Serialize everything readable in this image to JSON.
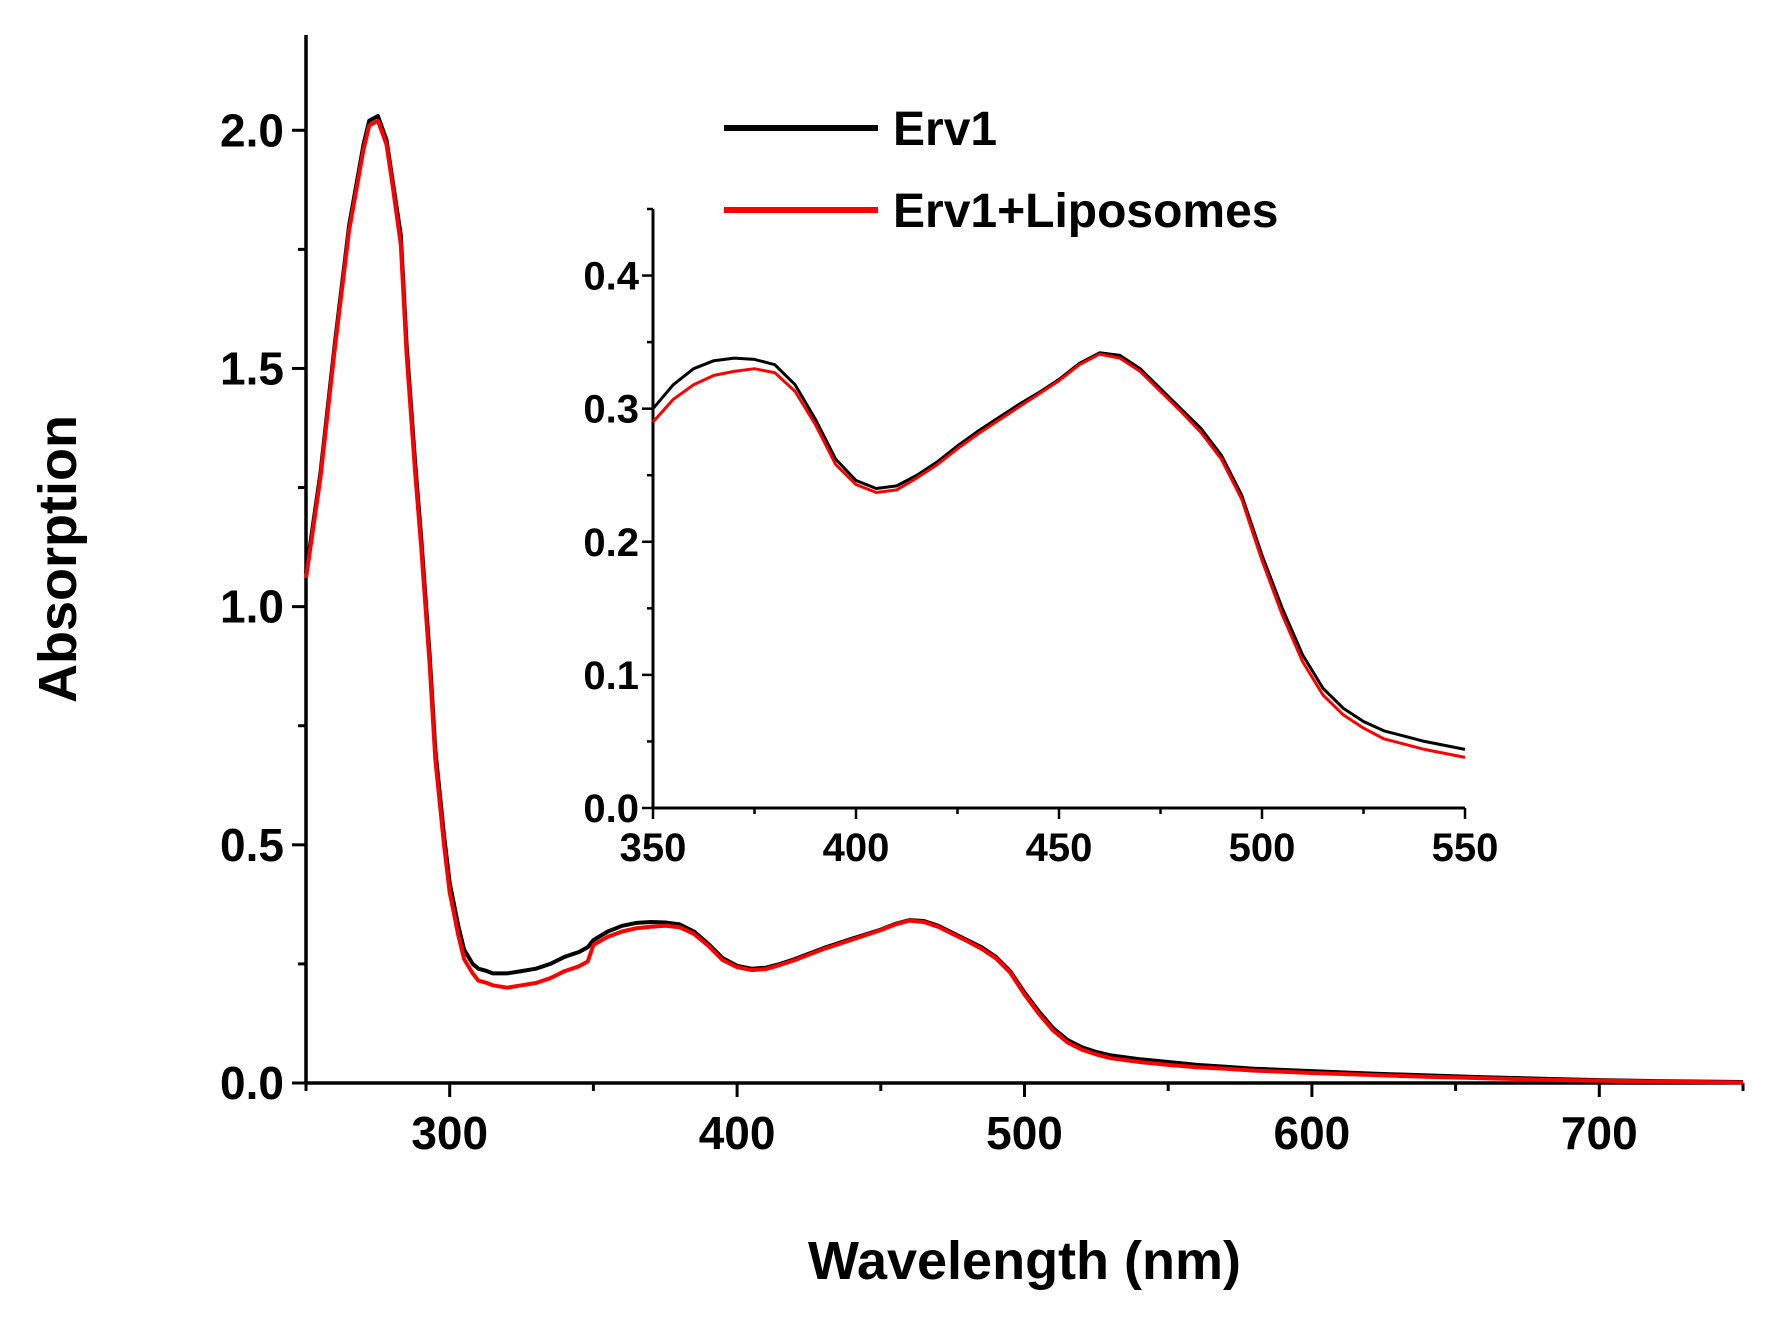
{
  "chart_data": [
    {
      "id": "main",
      "type": "line",
      "xlabel": "Wavelength (nm)",
      "ylabel": "Absorption",
      "xlim": [
        250,
        750
      ],
      "ylim": [
        0,
        2.2
      ],
      "xticks": [
        300,
        400,
        500,
        600,
        700
      ],
      "xtick_labels": [
        "300",
        "400",
        "500",
        "600",
        "700"
      ],
      "yticks": [
        0,
        0.5,
        1.0,
        1.5,
        2.0
      ],
      "ytick_labels": [
        "0.0",
        "0.5",
        "1.0",
        "1.5",
        "2.0"
      ],
      "grid": false,
      "legend": {
        "position": "top-center",
        "entries": [
          "Erv1",
          "Erv1+Liposomes"
        ]
      },
      "series": [
        {
          "name": "Erv1",
          "color": "#000000",
          "x": [
            250,
            255,
            260,
            265,
            270,
            272,
            275,
            278,
            280,
            283,
            285,
            288,
            290,
            293,
            295,
            298,
            300,
            303,
            305,
            308,
            310,
            313,
            315,
            320,
            325,
            330,
            335,
            340,
            345,
            348,
            350,
            355,
            360,
            365,
            370,
            375,
            380,
            385,
            390,
            395,
            400,
            405,
            410,
            415,
            420,
            430,
            440,
            450,
            455,
            460,
            465,
            470,
            475,
            480,
            485,
            490,
            495,
            500,
            505,
            510,
            515,
            520,
            525,
            530,
            540,
            550,
            560,
            570,
            580,
            600,
            620,
            640,
            660,
            680,
            700,
            720,
            750
          ],
          "y": [
            1.07,
            1.28,
            1.55,
            1.8,
            1.97,
            2.02,
            2.03,
            1.98,
            1.9,
            1.78,
            1.55,
            1.3,
            1.15,
            0.9,
            0.7,
            0.52,
            0.42,
            0.33,
            0.28,
            0.25,
            0.24,
            0.235,
            0.23,
            0.23,
            0.235,
            0.24,
            0.25,
            0.265,
            0.275,
            0.285,
            0.3,
            0.318,
            0.33,
            0.336,
            0.338,
            0.337,
            0.333,
            0.318,
            0.292,
            0.262,
            0.246,
            0.24,
            0.242,
            0.25,
            0.26,
            0.283,
            0.303,
            0.322,
            0.334,
            0.342,
            0.34,
            0.33,
            0.315,
            0.3,
            0.285,
            0.265,
            0.235,
            0.19,
            0.15,
            0.115,
            0.09,
            0.075,
            0.065,
            0.058,
            0.05,
            0.044,
            0.038,
            0.034,
            0.03,
            0.025,
            0.02,
            0.016,
            0.012,
            0.009,
            0.006,
            0.004,
            0.002
          ]
        },
        {
          "name": "Erv1+Liposomes",
          "color": "#ff0000",
          "x": [
            250,
            255,
            260,
            265,
            270,
            272,
            275,
            278,
            280,
            283,
            285,
            288,
            290,
            293,
            295,
            298,
            300,
            303,
            305,
            308,
            310,
            313,
            315,
            320,
            325,
            330,
            335,
            340,
            345,
            348,
            350,
            355,
            360,
            365,
            370,
            375,
            380,
            385,
            390,
            395,
            400,
            405,
            410,
            415,
            420,
            430,
            440,
            450,
            455,
            460,
            465,
            470,
            475,
            480,
            485,
            490,
            495,
            500,
            505,
            510,
            515,
            520,
            525,
            530,
            540,
            550,
            560,
            570,
            580,
            600,
            620,
            640,
            660,
            680,
            700,
            720,
            750
          ],
          "y": [
            1.06,
            1.27,
            1.54,
            1.79,
            1.96,
            2.01,
            2.02,
            1.97,
            1.89,
            1.76,
            1.53,
            1.28,
            1.13,
            0.88,
            0.68,
            0.5,
            0.4,
            0.31,
            0.26,
            0.23,
            0.215,
            0.21,
            0.205,
            0.2,
            0.205,
            0.21,
            0.22,
            0.235,
            0.245,
            0.255,
            0.29,
            0.307,
            0.318,
            0.325,
            0.328,
            0.33,
            0.327,
            0.313,
            0.288,
            0.258,
            0.243,
            0.237,
            0.239,
            0.248,
            0.258,
            0.281,
            0.301,
            0.321,
            0.333,
            0.341,
            0.338,
            0.328,
            0.313,
            0.298,
            0.282,
            0.262,
            0.232,
            0.186,
            0.145,
            0.11,
            0.085,
            0.07,
            0.06,
            0.052,
            0.044,
            0.038,
            0.033,
            0.03,
            0.026,
            0.021,
            0.017,
            0.013,
            0.01,
            0.007,
            0.005,
            0.003,
            0.001
          ]
        }
      ]
    },
    {
      "id": "inset",
      "type": "line",
      "xlabel": "",
      "ylabel": "",
      "xlim": [
        350,
        550
      ],
      "ylim": [
        0,
        0.45
      ],
      "xticks": [
        350,
        400,
        450,
        500,
        550
      ],
      "xtick_labels": [
        "350",
        "400",
        "450",
        "500",
        "550"
      ],
      "yticks": [
        0,
        0.1,
        0.2,
        0.3,
        0.4
      ],
      "ytick_labels": [
        "0.0",
        "0.1",
        "0.2",
        "0.3",
        "0.4"
      ],
      "grid": false,
      "series": [
        {
          "name": "Erv1",
          "color": "#000000",
          "x": [
            350,
            355,
            360,
            365,
            370,
            375,
            380,
            385,
            390,
            395,
            400,
            405,
            410,
            415,
            420,
            425,
            430,
            435,
            440,
            445,
            450,
            455,
            460,
            465,
            470,
            475,
            480,
            485,
            490,
            495,
            500,
            505,
            510,
            515,
            520,
            525,
            530,
            535,
            540,
            545,
            550
          ],
          "y": [
            0.3,
            0.318,
            0.33,
            0.336,
            0.338,
            0.337,
            0.333,
            0.318,
            0.292,
            0.262,
            0.246,
            0.24,
            0.242,
            0.25,
            0.26,
            0.272,
            0.283,
            0.293,
            0.303,
            0.312,
            0.322,
            0.334,
            0.342,
            0.34,
            0.33,
            0.315,
            0.3,
            0.285,
            0.265,
            0.235,
            0.19,
            0.15,
            0.115,
            0.09,
            0.075,
            0.065,
            0.058,
            0.054,
            0.05,
            0.047,
            0.044
          ]
        },
        {
          "name": "Erv1+Liposomes",
          "color": "#ff0000",
          "x": [
            350,
            355,
            360,
            365,
            370,
            375,
            380,
            385,
            390,
            395,
            400,
            405,
            410,
            415,
            420,
            425,
            430,
            435,
            440,
            445,
            450,
            455,
            460,
            465,
            470,
            475,
            480,
            485,
            490,
            495,
            500,
            505,
            510,
            515,
            520,
            525,
            530,
            535,
            540,
            545,
            550
          ],
          "y": [
            0.29,
            0.307,
            0.318,
            0.325,
            0.328,
            0.33,
            0.327,
            0.313,
            0.288,
            0.258,
            0.243,
            0.237,
            0.239,
            0.248,
            0.258,
            0.27,
            0.281,
            0.291,
            0.301,
            0.311,
            0.321,
            0.333,
            0.341,
            0.338,
            0.328,
            0.313,
            0.298,
            0.282,
            0.262,
            0.232,
            0.186,
            0.145,
            0.11,
            0.085,
            0.07,
            0.06,
            0.052,
            0.048,
            0.044,
            0.041,
            0.038
          ]
        }
      ]
    }
  ]
}
